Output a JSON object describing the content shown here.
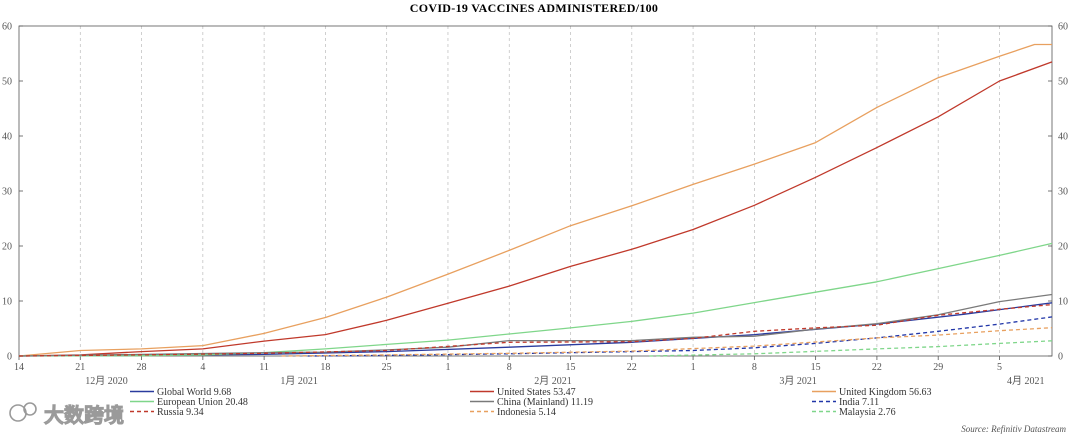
{
  "chart_data": {
    "type": "line",
    "title": "COVID-19 VACCINES ADMINISTERED/100",
    "xlabel": "",
    "ylabel": "",
    "ylim": [
      0,
      60
    ],
    "y_ticks": [
      0,
      10,
      20,
      30,
      40,
      50,
      60
    ],
    "y_tick_labels": [
      "0",
      "10",
      "20",
      "30",
      "40",
      "50",
      "60"
    ],
    "x_range": [
      "2020-12-14",
      "2021-04-11"
    ],
    "x_tick_dates": [
      "2020-12-14",
      "2020-12-21",
      "2020-12-28",
      "2021-01-04",
      "2021-01-11",
      "2021-01-18",
      "2021-01-25",
      "2021-02-01",
      "2021-02-08",
      "2021-02-15",
      "2021-02-22",
      "2021-03-01",
      "2021-03-08",
      "2021-03-15",
      "2021-03-22",
      "2021-03-29",
      "2021-04-05"
    ],
    "x_tick_labels": [
      "14",
      "21",
      "28",
      "4",
      "11",
      "18",
      "25",
      "1",
      "8",
      "15",
      "22",
      "1",
      "8",
      "15",
      "22",
      "29",
      "5"
    ],
    "x_month_labels": [
      {
        "date": "2020-12-24",
        "label": "12月 2020"
      },
      {
        "date": "2021-01-15",
        "label": "1月 2021"
      },
      {
        "date": "2021-02-13",
        "label": "2月 2021"
      },
      {
        "date": "2021-03-13",
        "label": "3月 2021"
      },
      {
        "date": "2021-04-08",
        "label": "4月 2021"
      }
    ],
    "grid": "vertical-dashed",
    "legend_position": "bottom",
    "source": "Source: Refinitiv Datastream",
    "series": [
      {
        "name": "Global World",
        "legend_label": "Global World 9.68",
        "color": "#2a3b9e",
        "dash": "solid",
        "points": [
          [
            "2020-12-14",
            0
          ],
          [
            "2020-12-28",
            0.1
          ],
          [
            "2021-01-11",
            0.3
          ],
          [
            "2021-01-25",
            0.8
          ],
          [
            "2021-02-08",
            1.6
          ],
          [
            "2021-02-22",
            2.5
          ],
          [
            "2021-03-08",
            3.9
          ],
          [
            "2021-03-22",
            5.8
          ],
          [
            "2021-04-01",
            7.6
          ],
          [
            "2021-04-11",
            9.68
          ]
        ]
      },
      {
        "name": "United States",
        "legend_label": "United States 53.47",
        "color": "#c0392b",
        "dash": "solid",
        "points": [
          [
            "2020-12-14",
            0
          ],
          [
            "2020-12-21",
            0.2
          ],
          [
            "2020-12-28",
            0.8
          ],
          [
            "2021-01-04",
            1.3
          ],
          [
            "2021-01-11",
            2.7
          ],
          [
            "2021-01-18",
            3.9
          ],
          [
            "2021-01-25",
            6.5
          ],
          [
            "2021-02-01",
            9.6
          ],
          [
            "2021-02-08",
            12.7
          ],
          [
            "2021-02-15",
            16.3
          ],
          [
            "2021-02-22",
            19.4
          ],
          [
            "2021-03-01",
            23.0
          ],
          [
            "2021-03-08",
            27.4
          ],
          [
            "2021-03-15",
            32.5
          ],
          [
            "2021-03-22",
            37.9
          ],
          [
            "2021-03-29",
            43.5
          ],
          [
            "2021-04-05",
            50.0
          ],
          [
            "2021-04-11",
            53.47
          ]
        ]
      },
      {
        "name": "United Kingdom",
        "legend_label": "United Kingdom 56.63",
        "color": "#e8a05f",
        "dash": "solid",
        "points": [
          [
            "2020-12-14",
            0
          ],
          [
            "2020-12-21",
            1.0
          ],
          [
            "2020-12-28",
            1.3
          ],
          [
            "2021-01-04",
            1.9
          ],
          [
            "2021-01-11",
            4.1
          ],
          [
            "2021-01-18",
            7.0
          ],
          [
            "2021-01-25",
            10.7
          ],
          [
            "2021-02-01",
            14.9
          ],
          [
            "2021-02-08",
            19.2
          ],
          [
            "2021-02-15",
            23.7
          ],
          [
            "2021-02-22",
            27.3
          ],
          [
            "2021-03-01",
            31.2
          ],
          [
            "2021-03-08",
            34.9
          ],
          [
            "2021-03-15",
            38.8
          ],
          [
            "2021-03-22",
            45.2
          ],
          [
            "2021-03-29",
            50.6
          ],
          [
            "2021-04-05",
            54.5
          ],
          [
            "2021-04-09",
            56.63
          ],
          [
            "2021-04-11",
            56.63
          ]
        ]
      },
      {
        "name": "European Union",
        "legend_label": "European Union 20.48",
        "color": "#7fd68a",
        "dash": "solid",
        "points": [
          [
            "2020-12-14",
            0
          ],
          [
            "2020-12-28",
            0.05
          ],
          [
            "2021-01-04",
            0.2
          ],
          [
            "2021-01-11",
            0.6
          ],
          [
            "2021-01-18",
            1.3
          ],
          [
            "2021-01-25",
            2.1
          ],
          [
            "2021-02-01",
            2.9
          ],
          [
            "2021-02-08",
            4.0
          ],
          [
            "2021-02-15",
            5.1
          ],
          [
            "2021-02-22",
            6.3
          ],
          [
            "2021-03-01",
            7.8
          ],
          [
            "2021-03-08",
            9.7
          ],
          [
            "2021-03-15",
            11.6
          ],
          [
            "2021-03-22",
            13.5
          ],
          [
            "2021-03-29",
            15.9
          ],
          [
            "2021-04-05",
            18.3
          ],
          [
            "2021-04-11",
            20.48
          ]
        ]
      },
      {
        "name": "China (Mainland)",
        "legend_label": "China (Mainland) 11.19",
        "color": "#7a7a7a",
        "dash": "solid",
        "points": [
          [
            "2020-12-14",
            0
          ],
          [
            "2020-12-28",
            0.3
          ],
          [
            "2021-01-11",
            0.6
          ],
          [
            "2021-01-18",
            0.7
          ],
          [
            "2021-01-25",
            1.1
          ],
          [
            "2021-02-01",
            1.6
          ],
          [
            "2021-02-08",
            2.8
          ],
          [
            "2021-02-22",
            2.8
          ],
          [
            "2021-03-01",
            3.4
          ],
          [
            "2021-03-08",
            3.6
          ],
          [
            "2021-03-15",
            4.9
          ],
          [
            "2021-03-22",
            5.9
          ],
          [
            "2021-03-29",
            7.5
          ],
          [
            "2021-04-05",
            9.9
          ],
          [
            "2021-04-11",
            11.19
          ]
        ]
      },
      {
        "name": "India",
        "legend_label": "India 7.11",
        "color": "#2136a8",
        "dash": "dashed",
        "points": [
          [
            "2021-01-16",
            0
          ],
          [
            "2021-01-25",
            0.1
          ],
          [
            "2021-02-08",
            0.4
          ],
          [
            "2021-02-22",
            0.8
          ],
          [
            "2021-03-01",
            1.0
          ],
          [
            "2021-03-08",
            1.5
          ],
          [
            "2021-03-15",
            2.3
          ],
          [
            "2021-03-22",
            3.3
          ],
          [
            "2021-03-29",
            4.5
          ],
          [
            "2021-04-05",
            5.8
          ],
          [
            "2021-04-11",
            7.11
          ]
        ]
      },
      {
        "name": "Russia",
        "legend_label": "Russia 9.34",
        "color": "#c0392b",
        "dash": "dashed",
        "points": [
          [
            "2020-12-14",
            0
          ],
          [
            "2020-12-28",
            0.2
          ],
          [
            "2021-01-11",
            0.5
          ],
          [
            "2021-01-25",
            1.0
          ],
          [
            "2021-02-08",
            2.5
          ],
          [
            "2021-02-22",
            2.6
          ],
          [
            "2021-03-01",
            3.2
          ],
          [
            "2021-03-08",
            4.5
          ],
          [
            "2021-03-15",
            5.1
          ],
          [
            "2021-03-22",
            5.6
          ],
          [
            "2021-03-29",
            7.4
          ],
          [
            "2021-04-05",
            8.5
          ],
          [
            "2021-04-11",
            9.34
          ]
        ]
      },
      {
        "name": "Indonesia",
        "legend_label": "Indonesia 5.14",
        "color": "#e8a05f",
        "dash": "dashed",
        "points": [
          [
            "2021-01-13",
            0
          ],
          [
            "2021-01-25",
            0.2
          ],
          [
            "2021-02-08",
            0.5
          ],
          [
            "2021-02-22",
            0.9
          ],
          [
            "2021-03-08",
            1.8
          ],
          [
            "2021-03-22",
            3.3
          ],
          [
            "2021-03-29",
            3.8
          ],
          [
            "2021-04-05",
            4.6
          ],
          [
            "2021-04-11",
            5.14
          ]
        ]
      },
      {
        "name": "Malaysia",
        "legend_label": "Malaysia 2.76",
        "color": "#7fd68a",
        "dash": "dashed",
        "points": [
          [
            "2021-02-24",
            0
          ],
          [
            "2021-03-08",
            0.4
          ],
          [
            "2021-03-22",
            1.3
          ],
          [
            "2021-03-29",
            1.7
          ],
          [
            "2021-04-05",
            2.3
          ],
          [
            "2021-04-11",
            2.76
          ]
        ]
      }
    ]
  },
  "watermark": "大数跨境"
}
